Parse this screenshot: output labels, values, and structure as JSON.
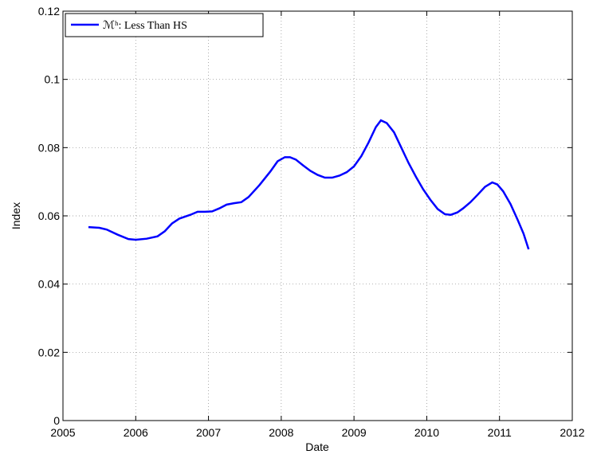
{
  "chart_data": {
    "type": "line",
    "xlabel": "Date",
    "ylabel": "Index",
    "x": [
      2005.35,
      2005.5,
      2005.6,
      2005.75,
      2005.9,
      2006.0,
      2006.15,
      2006.3,
      2006.4,
      2006.5,
      2006.6,
      2006.75,
      2006.85,
      2006.95,
      2007.05,
      2007.15,
      2007.25,
      2007.35,
      2007.45,
      2007.55,
      2007.7,
      2007.85,
      2007.95,
      2008.05,
      2008.12,
      2008.2,
      2008.3,
      2008.4,
      2008.5,
      2008.6,
      2008.7,
      2008.8,
      2008.9,
      2009.0,
      2009.1,
      2009.2,
      2009.3,
      2009.37,
      2009.45,
      2009.55,
      2009.65,
      2009.75,
      2009.85,
      2009.95,
      2010.05,
      2010.15,
      2010.25,
      2010.33,
      2010.42,
      2010.5,
      2010.6,
      2010.7,
      2010.8,
      2010.9,
      2010.97,
      2011.05,
      2011.15,
      2011.25,
      2011.33,
      2011.4
    ],
    "series": [
      {
        "name": "ℳʰ: Less Than HS",
        "color": "#0000ff",
        "values": [
          0.0567,
          0.0565,
          0.056,
          0.0545,
          0.0532,
          0.053,
          0.0533,
          0.054,
          0.0555,
          0.0578,
          0.0592,
          0.0603,
          0.0612,
          0.0612,
          0.0613,
          0.0622,
          0.0633,
          0.0637,
          0.064,
          0.0655,
          0.069,
          0.073,
          0.076,
          0.0772,
          0.0772,
          0.0765,
          0.0748,
          0.0732,
          0.072,
          0.0712,
          0.0712,
          0.0718,
          0.0728,
          0.0745,
          0.0775,
          0.0815,
          0.086,
          0.088,
          0.0872,
          0.0845,
          0.08,
          0.0755,
          0.0715,
          0.0678,
          0.0647,
          0.062,
          0.0605,
          0.0603,
          0.061,
          0.0622,
          0.064,
          0.0662,
          0.0685,
          0.0698,
          0.0692,
          0.0672,
          0.0635,
          0.0588,
          0.0548,
          0.0502
        ]
      }
    ],
    "xlim": [
      2005,
      2012
    ],
    "xticks": [
      2005,
      2006,
      2007,
      2008,
      2009,
      2010,
      2011,
      2012
    ],
    "ylim": [
      0,
      0.12
    ],
    "yticks": [
      0,
      0.02,
      0.04,
      0.06,
      0.08,
      0.1,
      0.12
    ],
    "grid": true,
    "legend": "upper left"
  }
}
